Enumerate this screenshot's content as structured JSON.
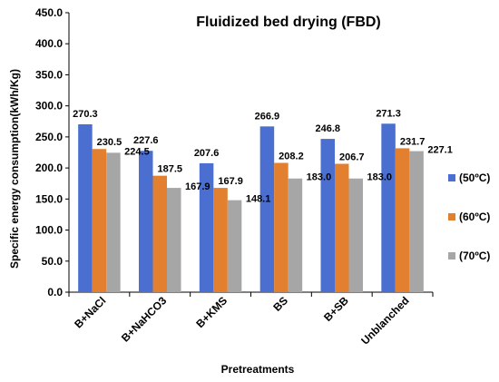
{
  "chart_data": {
    "type": "bar",
    "title": "Fluidized bed drying (FBD)",
    "xlabel": "Pretreatments",
    "ylabel": "Specific energy consumption(kWh/Kg)",
    "ylim": [
      0,
      450
    ],
    "yticks": [
      "0.0",
      "50.0",
      "100.0",
      "150.0",
      "200.0",
      "250.0",
      "300.0",
      "350.0",
      "400.0",
      "450.0"
    ],
    "categories": [
      "B+NaCl",
      "B+NaHCO3",
      "B+KMS",
      "BS",
      "B+SB",
      "Unblanched"
    ],
    "series": [
      {
        "name": "(50ºC)",
        "color": "#4a6fd1",
        "values": [
          270.3,
          227.6,
          207.6,
          266.9,
          246.8,
          271.3
        ],
        "labels": [
          "270.3",
          "227.6",
          "207.6",
          "266.9",
          "246.8",
          "271.3"
        ]
      },
      {
        "name": "(60ºC)",
        "color": "#e2802f",
        "values": [
          230.5,
          187.5,
          167.9,
          208.2,
          206.7,
          231.7
        ],
        "labels": [
          "230.5",
          "187.5",
          "167.9",
          "208.2",
          "206.7",
          "231.7"
        ]
      },
      {
        "name": "(70ºC)",
        "color": "#a6a6a6",
        "values": [
          224.5,
          167.9,
          148.1,
          183.0,
          183.0,
          227.1
        ],
        "labels": [
          "224.5",
          "167.9",
          "148.1",
          "183.0",
          "183.0",
          "227.1"
        ]
      }
    ],
    "grid": false,
    "legend": "right"
  }
}
